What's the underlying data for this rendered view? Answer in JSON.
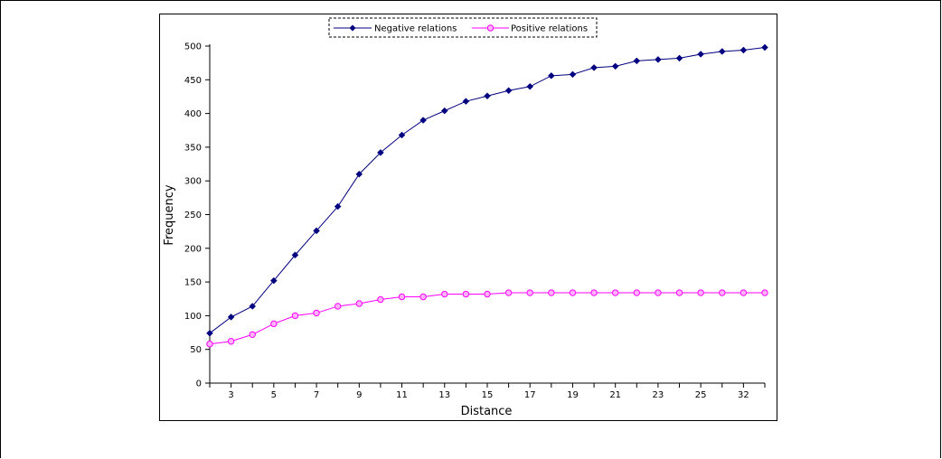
{
  "chart_data": {
    "type": "line",
    "xlabel": "Distance",
    "ylabel": "Frequency",
    "ylim": [
      0,
      500
    ],
    "yticks": [
      0,
      50,
      100,
      150,
      200,
      250,
      300,
      350,
      400,
      450,
      500
    ],
    "x": [
      "2",
      "3",
      "4",
      "5",
      "6",
      "7",
      "8",
      "9",
      "10",
      "11",
      "12",
      "13",
      "14",
      "15",
      "16",
      "17",
      "18",
      "19",
      "20",
      "21",
      "22",
      "23",
      "24",
      "25",
      "26",
      "32",
      "33"
    ],
    "xtick_labels": [
      "3",
      "5",
      "7",
      "9",
      "11",
      "13",
      "15",
      "17",
      "19",
      "21",
      "23",
      "25",
      "32"
    ],
    "legend_position": "top-center",
    "grid": false,
    "series": [
      {
        "name": "Negative relations",
        "color": "#000080",
        "marker": "diamond",
        "values": [
          74,
          98,
          114,
          152,
          190,
          226,
          262,
          310,
          342,
          368,
          390,
          404,
          418,
          426,
          434,
          440,
          456,
          458,
          468,
          470,
          478,
          480,
          482,
          488,
          492,
          494,
          498
        ]
      },
      {
        "name": "Positive relations",
        "color": "#ff00ff",
        "marker": "circle",
        "values": [
          58,
          62,
          72,
          88,
          100,
          104,
          114,
          118,
          124,
          128,
          128,
          132,
          132,
          132,
          134,
          134,
          134,
          134,
          134,
          134,
          134,
          134,
          134,
          134,
          134,
          134,
          134
        ]
      }
    ]
  }
}
